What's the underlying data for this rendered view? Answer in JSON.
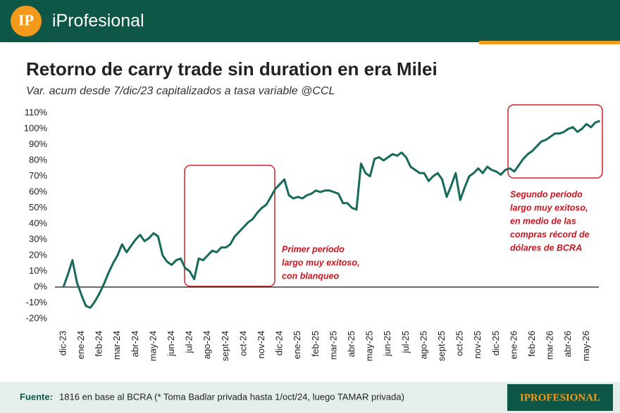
{
  "header": {
    "logo": "IP",
    "brand": "iProfesional"
  },
  "chart_data": {
    "type": "line",
    "title": "Retorno de carry trade sin duration en era Milei",
    "subtitle": "Var. acum desde 7/dic/23 capitalizados a tasa variable @CCL",
    "categories": [
      "dic-23",
      null,
      null,
      null,
      "ene-24",
      null,
      null,
      null,
      "feb-24",
      null,
      null,
      null,
      "mar-24",
      null,
      null,
      null,
      "abr-24",
      null,
      null,
      null,
      "may-24",
      null,
      null,
      null,
      "jun-24",
      null,
      null,
      null,
      "jul-24",
      null,
      null,
      null,
      "ago-24",
      null,
      null,
      null,
      "sept-24",
      null,
      null,
      null,
      "oct-24",
      null,
      null,
      null,
      "nov-24",
      null,
      null,
      null,
      "dic-24",
      null,
      null,
      null,
      "ene-25",
      null,
      null,
      null,
      "feb-25",
      null,
      null,
      null,
      "mar-25",
      null,
      null,
      null,
      "abr-25",
      null,
      null,
      null,
      "may-25",
      null,
      null,
      null,
      "jun-25",
      null,
      null,
      null,
      "jul-25",
      null,
      null,
      null,
      "ago-25",
      null,
      null,
      null,
      "sept-25",
      null,
      null,
      null,
      "oct-25",
      null,
      null,
      null,
      "nov-25",
      null,
      null,
      null,
      "dic-25",
      null,
      null,
      null,
      "ene-26",
      null,
      null,
      null,
      "feb-26",
      null,
      null,
      null,
      "mar-26",
      null,
      null,
      null,
      "abr-26",
      null,
      null,
      null,
      "may-26",
      null,
      null,
      null
    ],
    "series": [
      {
        "color": "#17695a",
        "values": [
          0,
          8,
          17,
          3,
          -5,
          -12,
          -13,
          -9,
          -4,
          2,
          9,
          15,
          20,
          27,
          22,
          26,
          30,
          33,
          29,
          31,
          34,
          32,
          20,
          16,
          14,
          17,
          18,
          12,
          10,
          5,
          18,
          17,
          20,
          23,
          22,
          25,
          25,
          27,
          32,
          35,
          38,
          41,
          43,
          47,
          50,
          52,
          57,
          62,
          65,
          68,
          58,
          56,
          57,
          56,
          58,
          59,
          61,
          60,
          61,
          61,
          60,
          59,
          53,
          53,
          50,
          49,
          78,
          72,
          70,
          81,
          82,
          80,
          82,
          84,
          83,
          85,
          82,
          76,
          74,
          72,
          72,
          67,
          70,
          72,
          68,
          57,
          64,
          72,
          55,
          63,
          70,
          72,
          75,
          72,
          76,
          74,
          73,
          71,
          74,
          75,
          73,
          77,
          81,
          84,
          86,
          89,
          92,
          93,
          95,
          97,
          97,
          98,
          100,
          101,
          98,
          100,
          103,
          101,
          104,
          105
        ]
      }
    ],
    "ylim": [
      -23,
      113
    ],
    "yticks": [
      {
        "value": -20,
        "label": "-20%"
      },
      {
        "value": -10,
        "label": "-10%"
      },
      {
        "value": 0,
        "label": "0%"
      },
      {
        "value": 10,
        "label": "10%"
      },
      {
        "value": 20,
        "label": "20%"
      },
      {
        "value": 30,
        "label": "30%"
      },
      {
        "value": 40,
        "label": "40%"
      },
      {
        "value": 50,
        "label": "50%"
      },
      {
        "value": 60,
        "label": "60%"
      },
      {
        "value": 70,
        "label": "70%"
      },
      {
        "value": 80,
        "label": "80%"
      },
      {
        "value": 90,
        "label": "90%"
      },
      {
        "value": 100,
        "label": "100%"
      },
      {
        "value": 110,
        "label": "110%"
      }
    ],
    "annotations": [
      {
        "lines": [
          "Primer período",
          "largo muy exitoso,",
          "con blanqueo"
        ]
      },
      {
        "lines": [
          "Segundo período",
          "largo muy exitoso,",
          "en medio de las",
          "compras récord de",
          "dólares de BCRA"
        ]
      }
    ]
  },
  "footer": {
    "source_label": "Fuente:",
    "source_text": "1816 en base al BCRA (* Toma Badlar privada hasta 1/oct/24, luego TAMAR privada)",
    "brand": "IPROFESIONAL"
  }
}
